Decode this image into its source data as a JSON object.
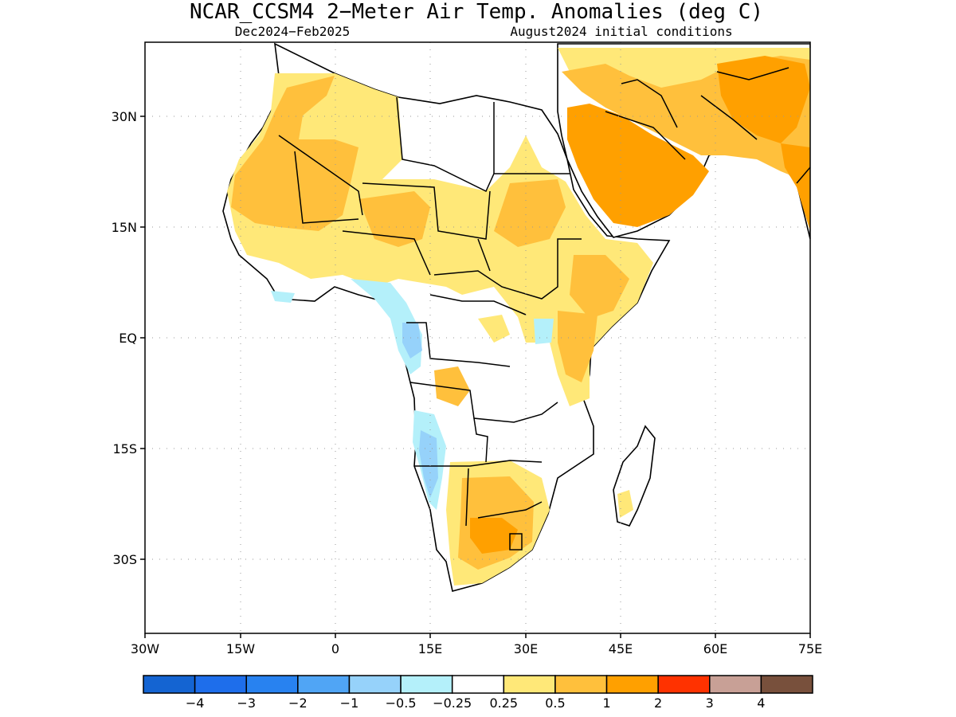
{
  "title": "NCAR_CCSM4 2−Meter Air Temp. Anomalies (deg C)",
  "subtitle_left": "Dec2024−Feb2025",
  "subtitle_right": "August2024 initial conditions",
  "lat_labels": [
    "30N",
    "15N",
    "EQ",
    "15S",
    "30S"
  ],
  "lon_labels": [
    "30W",
    "15W",
    "0",
    "15E",
    "30E",
    "45E",
    "60E",
    "75E"
  ],
  "colorbar": {
    "colors": [
      "#1464d2",
      "#1e6eeb",
      "#2882f0",
      "#50a5f5",
      "#96d2fa",
      "#b4f0fa",
      "#ffffff",
      "#ffe878",
      "#ffc03c",
      "#ffa000",
      "#ff3200",
      "#c8a096",
      "#78503c"
    ],
    "labels": [
      "−4",
      "−3",
      "−2",
      "−1",
      "−0.5",
      "−0.25",
      "0.25",
      "0.5",
      "1",
      "2",
      "3",
      "4"
    ]
  },
  "anomaly_colors": {
    "slight_warm": "#ffe878",
    "warm": "#ffc03c",
    "strong_warm": "#ffa000",
    "slight_cool": "#b4f0fa",
    "cool": "#96d2fa"
  }
}
